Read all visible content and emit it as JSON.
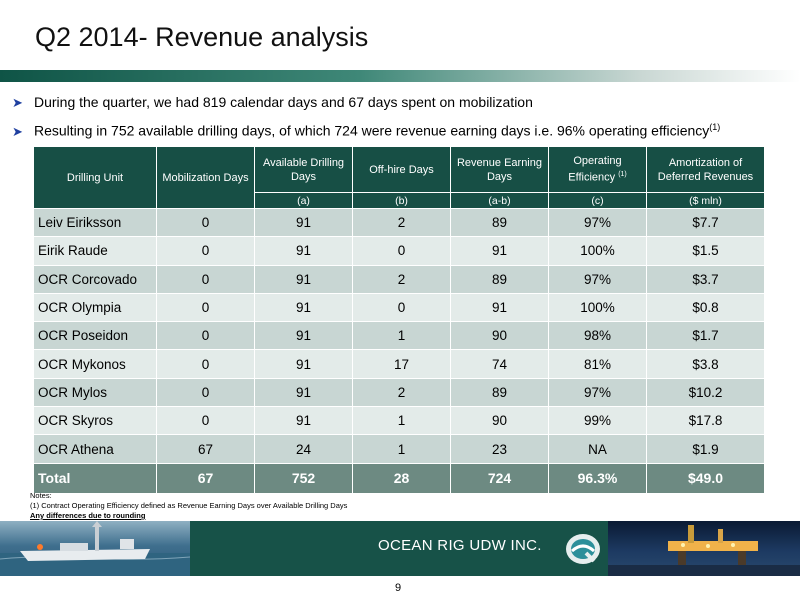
{
  "title": "Q2 2014- Revenue analysis",
  "bullets": [
    {
      "text": "During the quarter, we had 819 calendar days and 67 days spent on mobilization",
      "footnote": ""
    },
    {
      "text": "Resulting in 752 available drilling days, of which 724  were revenue earning days i.e. 96% operating efficiency",
      "footnote": "(1)"
    }
  ],
  "table": {
    "headers": {
      "unit": "Drilling Unit",
      "mobilization": "Mobilization Days",
      "available": "Available Drilling Days",
      "offhire": "Off-hire Days",
      "revenue_earning": "Revenue Earning Days",
      "efficiency": "Operating Efficiency",
      "efficiency_note": "(1)",
      "amortization": "Amortization of Deferred Revenues"
    },
    "subheaders": {
      "available": "(a)",
      "offhire": "(b)",
      "revenue_earning": "(a-b)",
      "efficiency": "(c)",
      "amortization": "($ mln)"
    },
    "rows": [
      {
        "unit": "Leiv Eiriksson",
        "mobilization": "0",
        "available": "91",
        "offhire": "2",
        "revenue_earning": "89",
        "efficiency": "97%",
        "amortization": "$7.7"
      },
      {
        "unit": "Eirik Raude",
        "mobilization": "0",
        "available": "91",
        "offhire": "0",
        "revenue_earning": "91",
        "efficiency": "100%",
        "amortization": "$1.5"
      },
      {
        "unit": "OCR Corcovado",
        "mobilization": "0",
        "available": "91",
        "offhire": "2",
        "revenue_earning": "89",
        "efficiency": "97%",
        "amortization": "$3.7"
      },
      {
        "unit": "OCR Olympia",
        "mobilization": "0",
        "available": "91",
        "offhire": "0",
        "revenue_earning": "91",
        "efficiency": "100%",
        "amortization": "$0.8"
      },
      {
        "unit": "OCR Poseidon",
        "mobilization": "0",
        "available": "91",
        "offhire": "1",
        "revenue_earning": "90",
        "efficiency": "98%",
        "amortization": "$1.7"
      },
      {
        "unit": "OCR Mykonos",
        "mobilization": "0",
        "available": "91",
        "offhire": "17",
        "revenue_earning": "74",
        "efficiency": "81%",
        "amortization": "$3.8"
      },
      {
        "unit": "OCR Mylos",
        "mobilization": "0",
        "available": "91",
        "offhire": "2",
        "revenue_earning": "89",
        "efficiency": "97%",
        "amortization": "$10.2"
      },
      {
        "unit": "OCR Skyros",
        "mobilization": "0",
        "available": "91",
        "offhire": "1",
        "revenue_earning": "90",
        "efficiency": "99%",
        "amortization": "$17.8"
      },
      {
        "unit": "OCR Athena",
        "mobilization": "67",
        "available": "24",
        "offhire": "1",
        "revenue_earning": "23",
        "efficiency": "NA",
        "amortization": "$1.9"
      }
    ],
    "total": {
      "unit": "Total",
      "mobilization": "67",
      "available": "752",
      "offhire": "28",
      "revenue_earning": "724",
      "efficiency": "96.3%",
      "amortization": "$49.0"
    }
  },
  "notes": {
    "heading": "Notes:",
    "line1": "(1) Contract Operating Efficiency defined as Revenue Earning  Days over Available Drilling Days",
    "line2": "Any differences due to rounding"
  },
  "footer": {
    "brand": "OCEAN RIG UDW INC.",
    "left_image": "drillship-at-sea-photo",
    "right_image": "offshore-rig-at-night-photo",
    "logo": "ocean-rig-logo"
  },
  "page_number": "9",
  "colors": {
    "header_green": "#174f45",
    "row_light": "#e3ebe9",
    "row_dark": "#c8d6d3",
    "total_row": "#6d8a82",
    "footer_green": "#175248",
    "bullet_arrow": "#1f3fa0"
  }
}
